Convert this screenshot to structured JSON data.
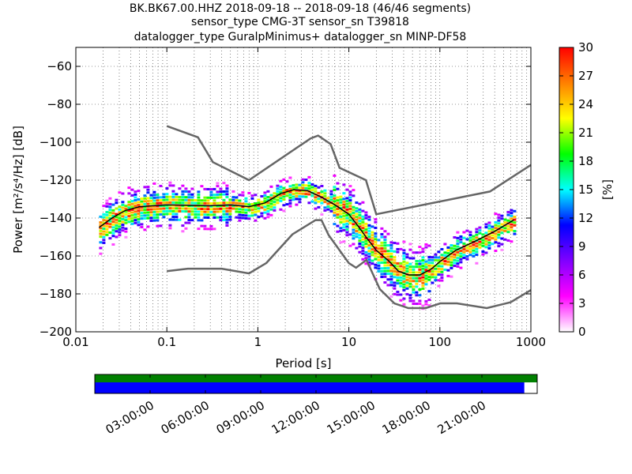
{
  "header": {
    "title_line1": "BK.BK67.00.HHZ   2018-09-18 -- 2018-09-18  (46/46 segments)",
    "title_line2": "sensor_type CMG-3T sensor_sn T39818",
    "title_line3": "datalogger_type GuralpMinimus+ datalogger_sn MINP-DF58"
  },
  "chart_data": {
    "type": "heatmap",
    "xlabel": "Period [s]",
    "ylabel": "Power [m²/s⁴/Hz] [dB]",
    "xscale": "log",
    "xlim": [
      0.01,
      1000
    ],
    "ylim": [
      -200,
      -50
    ],
    "xticks": [
      {
        "value": 0.01,
        "label": "0.01"
      },
      {
        "value": 0.1,
        "label": "0.1"
      },
      {
        "value": 1,
        "label": "1"
      },
      {
        "value": 10,
        "label": "10"
      },
      {
        "value": 100,
        "label": "100"
      },
      {
        "value": 1000,
        "label": "1000"
      }
    ],
    "yticks": [
      {
        "value": -60,
        "label": "−60"
      },
      {
        "value": -80,
        "label": "−80"
      },
      {
        "value": -100,
        "label": "−100"
      },
      {
        "value": -120,
        "label": "−120"
      },
      {
        "value": -140,
        "label": "−140"
      },
      {
        "value": -160,
        "label": "−160"
      },
      {
        "value": -180,
        "label": "−180"
      },
      {
        "value": -200,
        "label": "−200"
      }
    ],
    "grid": "dotted",
    "colorbar": {
      "label": "[%]",
      "range": [
        0,
        30
      ],
      "ticks": [
        {
          "value": 0,
          "label": "0"
        },
        {
          "value": 3,
          "label": "3"
        },
        {
          "value": 6,
          "label": "6"
        },
        {
          "value": 9,
          "label": "9"
        },
        {
          "value": 12,
          "label": "12"
        },
        {
          "value": 15,
          "label": "15"
        },
        {
          "value": 18,
          "label": "18"
        },
        {
          "value": 21,
          "label": "21"
        },
        {
          "value": 24,
          "label": "24"
        },
        {
          "value": 27,
          "label": "27"
        },
        {
          "value": 30,
          "label": "30"
        }
      ],
      "colors": [
        "#ffffff",
        "#ff00ff",
        "#8000ff",
        "#0000ff",
        "#00ffff",
        "#00ff00",
        "#ffff00",
        "#ff8000",
        "#ff0000"
      ]
    },
    "noise_models": [
      {
        "name": "NHNM",
        "points": [
          [
            0.1,
            -91.5
          ],
          [
            0.22,
            -97.4
          ],
          [
            0.32,
            -110.5
          ],
          [
            0.8,
            -120
          ],
          [
            3.8,
            -98
          ],
          [
            4.6,
            -96.5
          ],
          [
            6.3,
            -101
          ],
          [
            7.9,
            -113.5
          ],
          [
            15.4,
            -120
          ],
          [
            20,
            -138
          ],
          [
            354.8,
            -126
          ],
          [
            1000,
            -112
          ]
        ]
      },
      {
        "name": "NLNM",
        "points": [
          [
            0.1,
            -168
          ],
          [
            0.17,
            -166.7
          ],
          [
            0.4,
            -166.7
          ],
          [
            0.8,
            -169.2
          ],
          [
            1.24,
            -163.7
          ],
          [
            2.4,
            -148.6
          ],
          [
            4.3,
            -141.1
          ],
          [
            5,
            -141.1
          ],
          [
            6,
            -149
          ],
          [
            10,
            -163.8
          ],
          [
            12,
            -166.2
          ],
          [
            15.6,
            -162.1
          ],
          [
            21.9,
            -177.5
          ],
          [
            31.6,
            -185
          ],
          [
            45,
            -187.5
          ],
          [
            70,
            -187.5
          ],
          [
            101,
            -185
          ],
          [
            154,
            -185
          ],
          [
            328,
            -187.5
          ],
          [
            600,
            -184.4
          ],
          [
            1000,
            -178
          ]
        ]
      }
    ],
    "median": {
      "points": [
        [
          0.018,
          -145
        ],
        [
          0.025,
          -140
        ],
        [
          0.035,
          -136
        ],
        [
          0.05,
          -134
        ],
        [
          0.1,
          -133
        ],
        [
          0.3,
          -133.5
        ],
        [
          0.5,
          -133
        ],
        [
          0.8,
          -134
        ],
        [
          1.2,
          -132
        ],
        [
          1.8,
          -127
        ],
        [
          2.5,
          -125
        ],
        [
          3.5,
          -125.5
        ],
        [
          5,
          -129
        ],
        [
          7,
          -133
        ],
        [
          10,
          -138
        ],
        [
          13,
          -145
        ],
        [
          16,
          -151
        ],
        [
          20,
          -157
        ],
        [
          28,
          -163
        ],
        [
          35,
          -168
        ],
        [
          45,
          -170
        ],
        [
          60,
          -170
        ],
        [
          80,
          -167
        ],
        [
          100,
          -163
        ],
        [
          150,
          -157
        ],
        [
          250,
          -152
        ],
        [
          400,
          -147
        ],
        [
          650,
          -141
        ]
      ]
    },
    "time_axis": {
      "ticks": [
        "03:00:00",
        "06:00:00",
        "09:00:00",
        "12:00:00",
        "15:00:00",
        "18:00:00",
        "21:00:00"
      ],
      "tick_hours": [
        3,
        6,
        9,
        12,
        15,
        18,
        21
      ],
      "span_hours": [
        0,
        24
      ],
      "data_available_end_hour": 23.3,
      "colors": {
        "top": "#008000",
        "bottom": "#0000ff"
      }
    }
  }
}
